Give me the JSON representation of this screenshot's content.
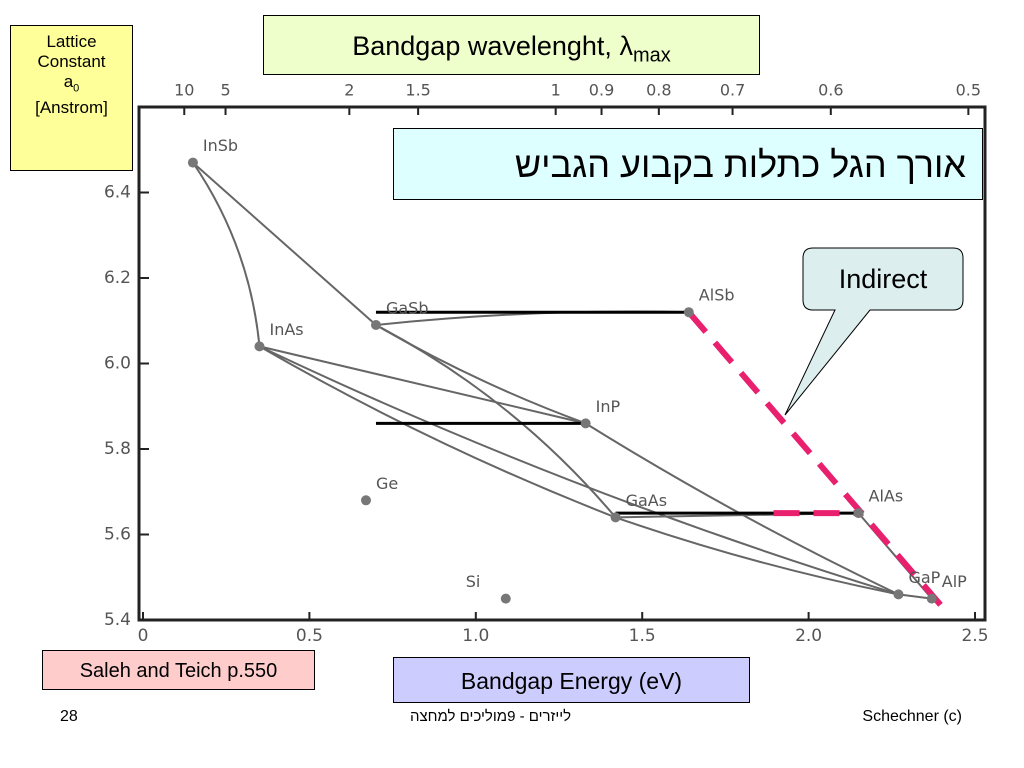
{
  "chart_data": {
    "type": "scatter",
    "x2label": "Bandgap wavelenght, λ",
    "x2label_sub": "max",
    "xlabel": "Bandgap Energy (eV)",
    "ylabel": [
      "Lattice",
      "Constant"
    ],
    "ylabel_symbol": "a",
    "ylabel_sub": "0",
    "ylabel_unit": "[Anstrom]",
    "xlim": [
      0,
      2.53
    ],
    "xticks": [
      0,
      0.5,
      {
        "value": 1,
        "label": "1.0"
      },
      1.5,
      {
        "value": 2,
        "label": "2.0"
      },
      2.5
    ],
    "ylim": [
      5.4,
      6.6
    ],
    "yticks": [
      5.4,
      5.6,
      5.8,
      {
        "value": 6,
        "label": "6.0"
      },
      6.2,
      6.4
    ],
    "x2ticks": [
      10,
      5,
      2,
      1.5,
      1,
      0.9,
      0.8,
      0.7,
      0.6,
      0.5
    ],
    "color": "#777777",
    "labels": [
      "InSb",
      "GaSb",
      "InAs",
      "AlSb",
      "InP",
      "Ge",
      "GaAs",
      "AlAs",
      "Si",
      "GaP",
      "AlP"
    ],
    "x": [
      0.15,
      0.7,
      0.35,
      1.64,
      1.33,
      0.67,
      1.42,
      2.15,
      1.09,
      2.27,
      2.37
    ],
    "values": [
      6.47,
      6.09,
      6.04,
      6.12,
      5.86,
      5.68,
      5.64,
      5.65,
      5.45,
      5.46,
      5.45
    ]
  },
  "annotations": {
    "hebrew_note": "אורך הגל כתלות בקבוע הגביש",
    "indirect": "Indirect",
    "source": "Saleh and Teich p.550"
  },
  "footer": {
    "page": "28",
    "course": "לייזרים - 9מוליכים למחצה",
    "author": "Schechner (c)"
  }
}
